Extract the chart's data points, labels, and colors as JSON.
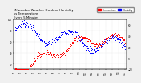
{
  "title": "Milwaukee Weather Outdoor Humidity\nvs Temperature\nEvery 5 Minutes",
  "title_fontsize": 2.8,
  "background_color": "#f0f0f0",
  "plot_bg_color": "#ffffff",
  "grid_color": "#cccccc",
  "blue_color": "#0000ff",
  "red_color": "#ff0000",
  "legend_humidity_label": "Humidity",
  "legend_temp_label": "Temperature",
  "xlabel_fontsize": 1.8,
  "tick_fontsize": 2.0,
  "marker_size": 0.5,
  "ylim_left": [
    10,
    100
  ],
  "ylim_right": [
    -20,
    70
  ],
  "n_points": 288,
  "yticks_left": [
    20,
    40,
    60,
    80,
    100
  ],
  "yticks_right": [
    -20,
    0,
    20,
    40,
    60
  ]
}
